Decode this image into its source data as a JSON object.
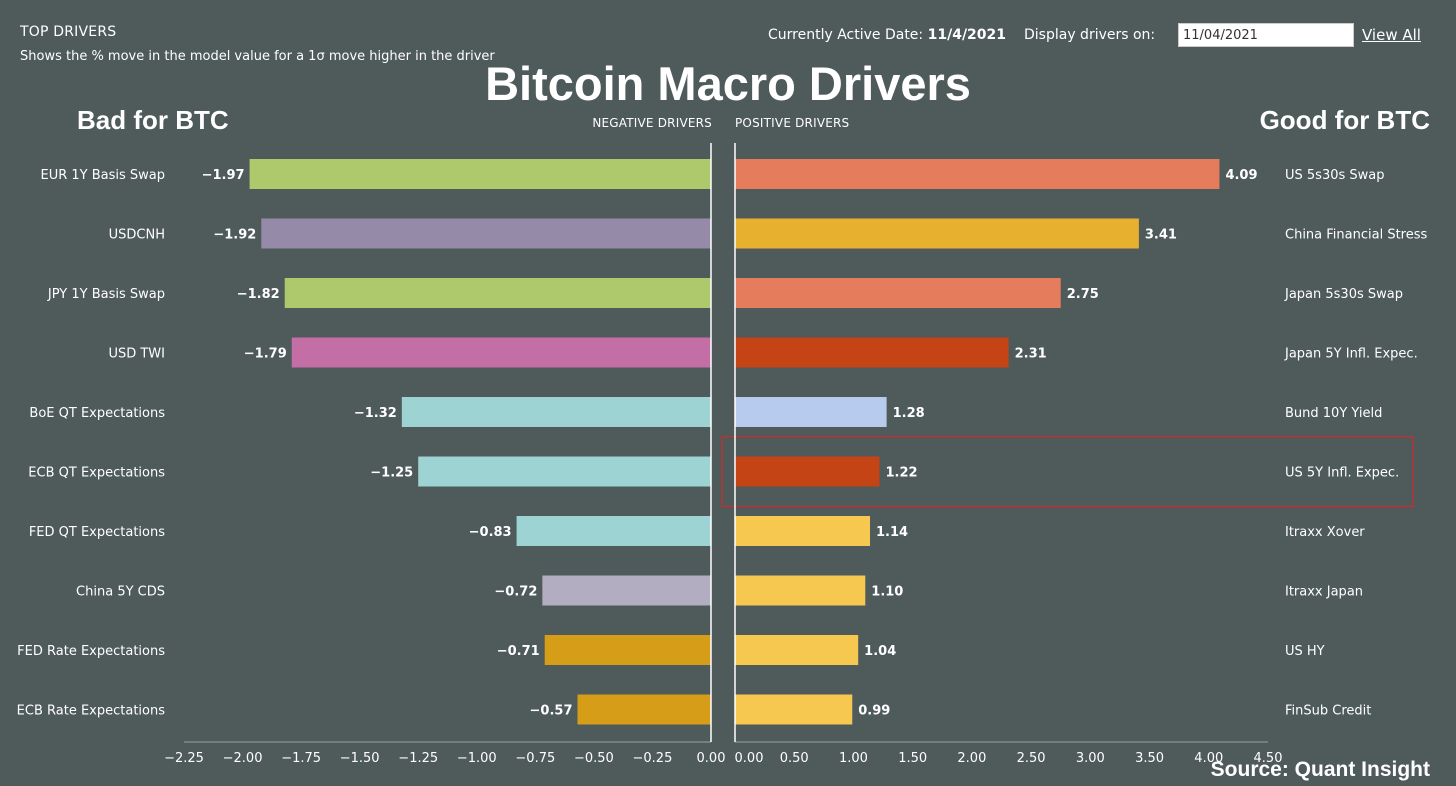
{
  "header": {
    "title": "TOP DRIVERS",
    "subtitle": "Shows the % move in the model value for a 1σ move higher in the driver",
    "active_date_label": "Currently Active Date:",
    "active_date_value": "11/4/2021",
    "display_label": "Display drivers on:",
    "display_date_value": "11/04/2021",
    "view_all": "View All"
  },
  "main_title": "Bitcoin Macro Drivers",
  "bad_label": "Bad for BTC",
  "good_label": "Good for BTC",
  "source": "Source: Quant Insight",
  "colors": {
    "background": "#4f5a5b",
    "highlight": "#d22a2a"
  },
  "chart_data": [
    {
      "type": "bar",
      "orientation": "horizontal",
      "heading": "NEGATIVE DRIVERS",
      "xlim": [
        -2.25,
        0
      ],
      "ticks": [
        -2.25,
        -2.0,
        -1.75,
        -1.5,
        -1.25,
        -1.0,
        -0.75,
        -0.5,
        -0.25,
        0.0
      ],
      "tick_labels": [
        "−2.25",
        "−2.00",
        "−1.75",
        "−1.50",
        "−1.25",
        "−1.00",
        "−0.75",
        "−0.50",
        "−0.25",
        "0.00"
      ],
      "bars": [
        {
          "label": "EUR 1Y Basis Swap",
          "value": -1.97,
          "value_label": "−1.97",
          "color": "#adc96b"
        },
        {
          "label": "USDCNH",
          "value": -1.92,
          "value_label": "−1.92",
          "color": "#958ba9"
        },
        {
          "label": "JPY 1Y Basis Swap",
          "value": -1.82,
          "value_label": "−1.82",
          "color": "#adc96b"
        },
        {
          "label": "USD TWI",
          "value": -1.79,
          "value_label": "−1.79",
          "color": "#c46ea6"
        },
        {
          "label": "BoE QT Expectations",
          "value": -1.32,
          "value_label": "−1.32",
          "color": "#9ed3d3"
        },
        {
          "label": "ECB QT Expectations",
          "value": -1.25,
          "value_label": "−1.25",
          "color": "#9ed3d3"
        },
        {
          "label": "FED QT Expectations",
          "value": -0.83,
          "value_label": "−0.83",
          "color": "#9ed3d3"
        },
        {
          "label": "China 5Y CDS",
          "value": -0.72,
          "value_label": "−0.72",
          "color": "#b3adc2"
        },
        {
          "label": "FED Rate Expectations",
          "value": -0.71,
          "value_label": "−0.71",
          "color": "#d59d18"
        },
        {
          "label": "ECB Rate Expectations",
          "value": -0.57,
          "value_label": "−0.57",
          "color": "#d59d18"
        }
      ]
    },
    {
      "type": "bar",
      "orientation": "horizontal",
      "heading": "POSITIVE DRIVERS",
      "xlim": [
        0,
        4.5
      ],
      "ticks": [
        0.0,
        0.5,
        1.0,
        1.5,
        2.0,
        2.5,
        3.0,
        3.5,
        4.0,
        4.5
      ],
      "tick_labels": [
        "0.00",
        "0.50",
        "1.00",
        "1.50",
        "2.00",
        "2.50",
        "3.00",
        "3.50",
        "4.00",
        "4.50"
      ],
      "bars": [
        {
          "label": "US 5s30s Swap",
          "value": 4.09,
          "value_label": "4.09",
          "color": "#e57c5c",
          "highlighted": false
        },
        {
          "label": "China Financial Stress",
          "value": 3.41,
          "value_label": "3.41",
          "color": "#e8b02f",
          "highlighted": false
        },
        {
          "label": "Japan 5s30s Swap",
          "value": 2.75,
          "value_label": "2.75",
          "color": "#e57c5c",
          "highlighted": false
        },
        {
          "label": "Japan 5Y Infl. Expec.",
          "value": 2.31,
          "value_label": "2.31",
          "color": "#c44416",
          "highlighted": false
        },
        {
          "label": "Bund 10Y Yield",
          "value": 1.28,
          "value_label": "1.28",
          "color": "#b7cbee",
          "highlighted": false
        },
        {
          "label": "US 5Y Infl. Expec.",
          "value": 1.22,
          "value_label": "1.22",
          "color": "#c44416",
          "highlighted": true
        },
        {
          "label": "Itraxx Xover",
          "value": 1.14,
          "value_label": "1.14",
          "color": "#f7c84f",
          "highlighted": false
        },
        {
          "label": "Itraxx Japan",
          "value": 1.1,
          "value_label": "1.10",
          "color": "#f7c84f",
          "highlighted": false
        },
        {
          "label": "US HY",
          "value": 1.04,
          "value_label": "1.04",
          "color": "#f7c84f",
          "highlighted": false
        },
        {
          "label": "FinSub Credit",
          "value": 0.99,
          "value_label": "0.99",
          "color": "#f7c84f",
          "highlighted": false
        }
      ]
    }
  ]
}
